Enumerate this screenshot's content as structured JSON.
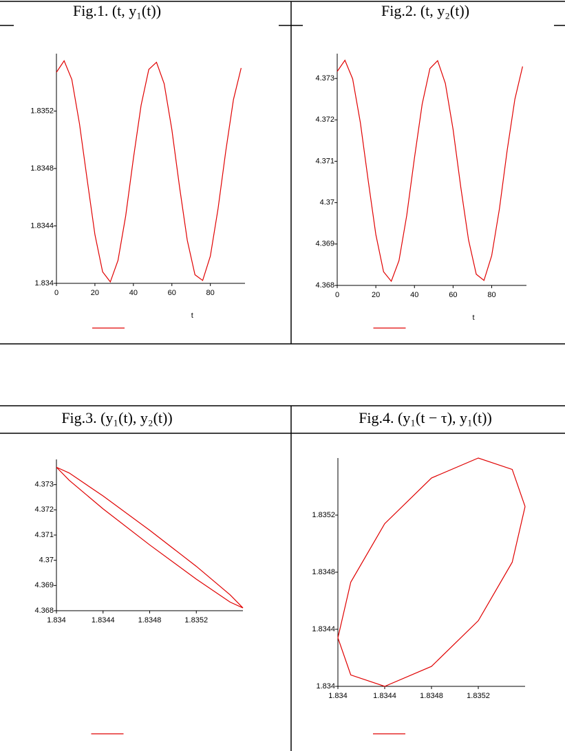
{
  "chart_data": [
    {
      "type": "line",
      "title": "Fig.1.  (t, y₁(t))",
      "x_label": "t",
      "x": [
        0,
        4,
        8,
        12,
        16,
        20,
        24,
        28,
        32,
        36,
        40,
        44,
        48,
        52,
        56,
        60,
        64,
        68,
        72,
        76,
        80,
        84,
        88,
        92,
        96
      ],
      "series": [
        {
          "color": "#e00000",
          "values": [
            1.83547,
            1.83555,
            1.83542,
            1.83511,
            1.83472,
            1.83434,
            1.83408,
            1.83401,
            1.83416,
            1.83447,
            1.83487,
            1.83524,
            1.83549,
            1.83554,
            1.83539,
            1.83507,
            1.83467,
            1.8343,
            1.83406,
            1.83402,
            1.83419,
            1.83452,
            1.83492,
            1.83528,
            1.8355
          ]
        }
      ],
      "xlim": [
        0,
        98
      ],
      "ylim": [
        1.834,
        1.8356
      ],
      "xticks": [
        0,
        20,
        40,
        60,
        80
      ],
      "yticks": [
        1.834,
        1.8344,
        1.8348,
        1.8352
      ]
    },
    {
      "type": "line",
      "title": "Fig.2.  (t, y₂(t))",
      "x_label": "t",
      "x": [
        0,
        4,
        8,
        12,
        16,
        20,
        24,
        28,
        32,
        36,
        40,
        44,
        48,
        52,
        56,
        60,
        64,
        68,
        72,
        76,
        80,
        84,
        88,
        92,
        96
      ],
      "series": [
        {
          "color": "#e00000",
          "values": [
            4.37317,
            4.37344,
            4.37299,
            4.37193,
            4.37055,
            4.36923,
            4.36833,
            4.3681,
            4.3686,
            4.36969,
            4.37108,
            4.37238,
            4.37324,
            4.37343,
            4.37288,
            4.37177,
            4.37037,
            4.3691,
            4.36827,
            4.36812,
            4.36872,
            4.36985,
            4.37126,
            4.3725,
            4.37329
          ]
        }
      ],
      "xlim": [
        0,
        98
      ],
      "ylim": [
        4.368,
        4.3736
      ],
      "xticks": [
        0,
        20,
        40,
        60,
        80
      ],
      "yticks": [
        4.368,
        4.369,
        4.37,
        4.371,
        4.372,
        4.373
      ]
    },
    {
      "type": "line",
      "title": "Fig.3.  (y₁(t), y₂(t))",
      "x": [
        1.834,
        1.83411,
        1.8344,
        1.8348,
        1.8352,
        1.83549,
        1.8356,
        1.83549,
        1.8352,
        1.8348,
        1.8344,
        1.83411,
        1.834
      ],
      "series": [
        {
          "color": "#e00000",
          "values": [
            4.37369,
            4.37317,
            4.37204,
            4.37061,
            4.36925,
            4.36834,
            4.36811,
            4.36863,
            4.36976,
            4.37119,
            4.37255,
            4.37346,
            4.37369
          ]
        }
      ],
      "xlim": [
        1.834,
        1.8356
      ],
      "ylim": [
        4.368,
        4.374
      ],
      "xticks": [
        1.834,
        1.8344,
        1.8348,
        1.8352
      ],
      "yticks": [
        4.368,
        4.369,
        4.37,
        4.371,
        4.372,
        4.373
      ]
    },
    {
      "type": "line",
      "title": "Fig.4.  (y₁(t − τ), y₁(t))",
      "x": [
        1.8356,
        1.83549,
        1.8352,
        1.8348,
        1.8344,
        1.83411,
        1.834,
        1.83411,
        1.8344,
        1.8348,
        1.8352,
        1.83549,
        1.8356
      ],
      "series": [
        {
          "color": "#e00000",
          "values": [
            1.83526,
            1.83552,
            1.8356,
            1.83546,
            1.83514,
            1.83473,
            1.83434,
            1.83408,
            1.834,
            1.83414,
            1.83446,
            1.83487,
            1.83526
          ]
        }
      ],
      "xlim": [
        1.834,
        1.8356
      ],
      "ylim": [
        1.834,
        1.8356
      ],
      "xticks": [
        1.834,
        1.8344,
        1.8348,
        1.8352
      ],
      "yticks": [
        1.834,
        1.8344,
        1.8348,
        1.8352
      ]
    }
  ]
}
